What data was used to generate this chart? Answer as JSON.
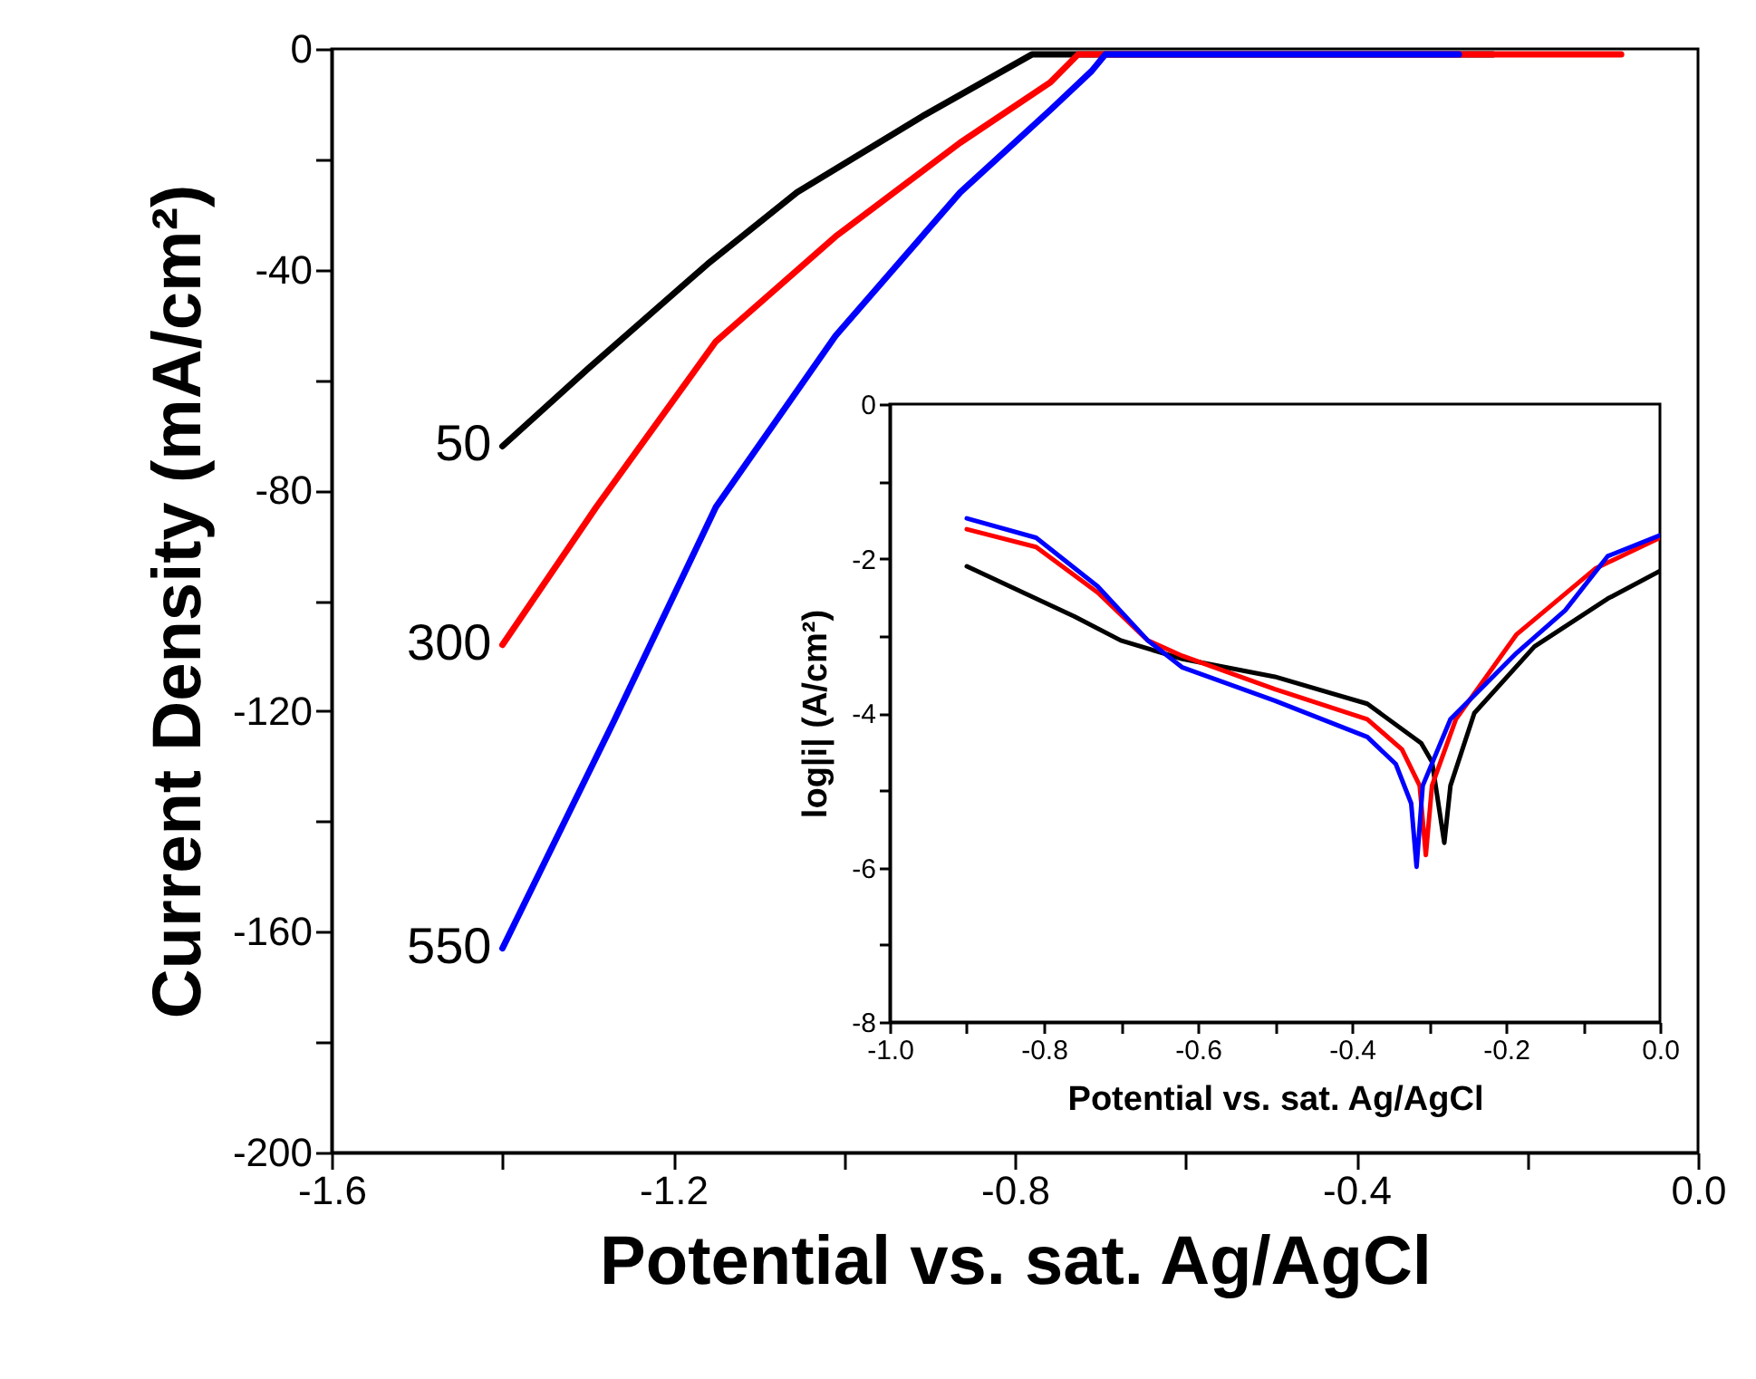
{
  "chart_data": [
    {
      "type": "line",
      "xlabel": "Potential vs. sat. Ag/AgCl",
      "ylabel": "Current Density (mA/cm²)",
      "xlim": [
        -1.6,
        0
      ],
      "ylim": [
        -200,
        0
      ],
      "xticks": [
        -1.6,
        {
          "value": -1.4,
          "label": null
        },
        -1.2,
        {
          "value": -1.0,
          "label": null
        },
        -0.8,
        {
          "value": -0.6,
          "label": null
        },
        -0.4,
        {
          "value": -0.2,
          "label": null
        },
        {
          "value": 0,
          "label": "0.0"
        }
      ],
      "yticks": [
        -200,
        {
          "value": -180,
          "label": null
        },
        -160,
        {
          "value": -140,
          "label": null
        },
        -120,
        {
          "value": -100,
          "label": null
        },
        -80,
        {
          "value": -60,
          "label": null
        },
        -40,
        {
          "value": -20,
          "label": null
        },
        0
      ],
      "series": [
        {
          "name": "50",
          "color": "#000000",
          "x": [
            -1.4,
            -1.3,
            -1.16,
            -1.055,
            -0.906,
            -0.78,
            -0.7,
            -0.5,
            -0.24
          ],
          "values": [
            -72,
            -58,
            -39,
            -26,
            -12,
            -1,
            -1,
            -1,
            -1
          ]
        },
        {
          "name": "300",
          "color": "#ff0000",
          "x": [
            -1.4,
            -1.29,
            -1.15,
            -1.01,
            -0.864,
            -0.758,
            -0.726,
            -0.09
          ],
          "values": [
            -108,
            -83,
            -53,
            -34,
            -17,
            -6,
            -1,
            -1
          ]
        },
        {
          "name": "550",
          "color": "#0000ff",
          "x": [
            -1.4,
            -1.27,
            -1.15,
            -1.01,
            -0.864,
            -0.758,
            -0.71,
            -0.694,
            -0.5,
            -0.28
          ],
          "values": [
            -163,
            -122,
            -83,
            -52,
            -26,
            -11,
            -4,
            -1,
            -1,
            -1
          ]
        }
      ]
    },
    {
      "type": "line",
      "xlabel": "Potential vs. sat. Ag/AgCl",
      "ylabel": "log|i| (A/cm²)",
      "xlim": [
        -1.0,
        0
      ],
      "ylim": [
        -8,
        0
      ],
      "xticks": [
        {
          "value": -1.0,
          "label": "-1.0"
        },
        {
          "value": -0.9,
          "label": null
        },
        -0.8,
        {
          "value": -0.7,
          "label": null
        },
        -0.6,
        {
          "value": -0.5,
          "label": null
        },
        -0.4,
        {
          "value": -0.3,
          "label": null
        },
        -0.2,
        {
          "value": -0.1,
          "label": null
        },
        {
          "value": 0,
          "label": "0.0"
        }
      ],
      "yticks": [
        -8,
        {
          "value": -7,
          "label": null
        },
        -6,
        {
          "value": -5,
          "label": null
        },
        -4,
        {
          "value": -3,
          "label": null
        },
        -2,
        {
          "value": -1,
          "label": null
        },
        0
      ],
      "series": [
        {
          "color": "#000000",
          "x": [
            -0.9,
            -0.76,
            -0.7,
            -0.62,
            -0.5,
            -0.38,
            -0.31,
            -0.296,
            -0.28,
            -0.272,
            -0.241,
            -0.163,
            -0.068,
            0
          ],
          "values": [
            -2.1,
            -2.75,
            -3.06,
            -3.3,
            -3.53,
            -3.88,
            -4.39,
            -4.63,
            -5.68,
            -4.94,
            -4.0,
            -3.14,
            -2.52,
            -2.16
          ]
        },
        {
          "color": "#ff0000",
          "x": [
            -0.9,
            -0.81,
            -0.73,
            -0.665,
            -0.62,
            -0.5,
            -0.38,
            -0.335,
            -0.312,
            -0.304,
            -0.296,
            -0.265,
            -0.186,
            -0.084,
            0
          ],
          "values": [
            -1.62,
            -1.85,
            -2.44,
            -3.06,
            -3.26,
            -3.69,
            -4.08,
            -4.47,
            -4.94,
            -5.84,
            -4.94,
            -4.08,
            -2.98,
            -2.13,
            -1.73
          ]
        },
        {
          "color": "#0000ff",
          "x": [
            -0.9,
            -0.81,
            -0.73,
            -0.665,
            -0.62,
            -0.5,
            -0.38,
            -0.343,
            -0.323,
            -0.316,
            -0.308,
            -0.272,
            -0.186,
            -0.123,
            -0.068,
            0
          ],
          "values": [
            -1.48,
            -1.73,
            -2.36,
            -3.06,
            -3.41,
            -3.84,
            -4.31,
            -4.66,
            -5.17,
            -5.99,
            -4.94,
            -4.08,
            -3.22,
            -2.67,
            -1.97,
            -1.7
          ]
        }
      ]
    }
  ]
}
